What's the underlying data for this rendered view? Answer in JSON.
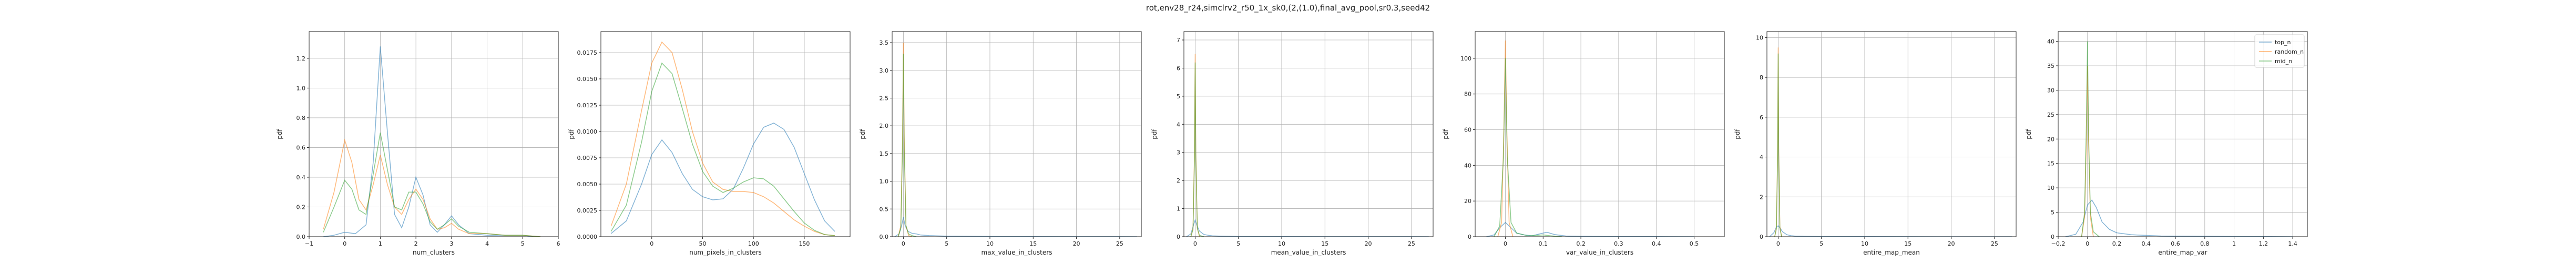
{
  "figure": {
    "title": "rot,env28_r24,simclrv2_r50_1x_sk0,(2,(1.0),final_avg_pool,sr0.3,seed42"
  },
  "colors": {
    "top_n": "#1f77b4",
    "random_n": "#ff7f0e",
    "mid_n": "#2ca02c"
  },
  "legend": {
    "entries": [
      "top_n",
      "random_n",
      "mid_n"
    ],
    "placement": "top-right"
  },
  "chart_data": [
    {
      "type": "line",
      "xlabel": "num_clusters",
      "ylabel": "pdf",
      "xlim": [
        -1,
        6
      ],
      "ylim": [
        0,
        1.38
      ],
      "xticks": [
        -1,
        0,
        1,
        2,
        3,
        4,
        5,
        6
      ],
      "yticks": [
        0.0,
        0.2,
        0.4,
        0.6,
        0.8,
        1.0,
        1.2
      ],
      "grid": true,
      "series": [
        {
          "name": "top_n",
          "x": [
            -0.6,
            -0.3,
            0,
            0.3,
            0.6,
            0.8,
            1.0,
            1.2,
            1.4,
            1.6,
            1.8,
            2.0,
            2.2,
            2.4,
            2.6,
            2.8,
            3.0,
            3.2,
            3.5,
            4.0,
            4.5,
            5.0,
            5.3
          ],
          "y": [
            0,
            0.01,
            0.03,
            0.02,
            0.08,
            0.5,
            1.28,
            0.7,
            0.15,
            0.06,
            0.2,
            0.4,
            0.28,
            0.08,
            0.03,
            0.08,
            0.14,
            0.08,
            0.02,
            0.01,
            0.01,
            0.01,
            0
          ]
        },
        {
          "name": "random_n",
          "x": [
            -0.6,
            -0.3,
            0,
            0.2,
            0.4,
            0.6,
            0.8,
            1.0,
            1.2,
            1.4,
            1.6,
            1.8,
            2.0,
            2.2,
            2.4,
            2.6,
            2.8,
            3.0,
            3.2,
            3.5,
            4.0,
            4.5,
            5.0,
            5.5
          ],
          "y": [
            0.05,
            0.3,
            0.65,
            0.5,
            0.25,
            0.18,
            0.35,
            0.55,
            0.35,
            0.2,
            0.15,
            0.25,
            0.32,
            0.25,
            0.12,
            0.05,
            0.06,
            0.09,
            0.05,
            0.02,
            0.02,
            0.01,
            0.01,
            0
          ]
        },
        {
          "name": "mid_n",
          "x": [
            -0.6,
            -0.3,
            0,
            0.2,
            0.4,
            0.6,
            0.8,
            1.0,
            1.2,
            1.4,
            1.6,
            1.8,
            2.0,
            2.2,
            2.4,
            2.6,
            2.8,
            3.0,
            3.2,
            3.5,
            4.0,
            4.5,
            5.0,
            5.5
          ],
          "y": [
            0.03,
            0.2,
            0.38,
            0.32,
            0.18,
            0.15,
            0.42,
            0.7,
            0.45,
            0.2,
            0.18,
            0.3,
            0.3,
            0.22,
            0.1,
            0.05,
            0.08,
            0.12,
            0.07,
            0.03,
            0.02,
            0.01,
            0.01,
            0
          ]
        }
      ]
    },
    {
      "type": "line",
      "xlabel": "num_pixels_in_clusters",
      "ylabel": "pdf",
      "xlim": [
        -50,
        195
      ],
      "ylim": [
        0,
        0.0195
      ],
      "xticks": [
        0,
        50,
        100,
        150
      ],
      "yticks": [
        0.0,
        0.0025,
        0.005,
        0.0075,
        0.01,
        0.0125,
        0.015,
        0.0175
      ],
      "ytick_labels": [
        "0.0000",
        "0.0025",
        "0.0050",
        "0.0075",
        "0.0100",
        "0.0125",
        "0.0150",
        "0.0175"
      ],
      "grid": true,
      "series": [
        {
          "name": "top_n",
          "x": [
            -40,
            -25,
            -10,
            0,
            10,
            20,
            30,
            40,
            50,
            60,
            70,
            80,
            90,
            100,
            110,
            120,
            130,
            140,
            150,
            160,
            170,
            180
          ],
          "y": [
            0.0003,
            0.0015,
            0.005,
            0.0078,
            0.0092,
            0.008,
            0.006,
            0.0045,
            0.0038,
            0.0035,
            0.0036,
            0.0045,
            0.0065,
            0.0088,
            0.0104,
            0.0108,
            0.0102,
            0.0085,
            0.006,
            0.0035,
            0.0015,
            0.0005
          ]
        },
        {
          "name": "random_n",
          "x": [
            -40,
            -25,
            -10,
            0,
            10,
            20,
            30,
            40,
            50,
            60,
            70,
            80,
            90,
            100,
            110,
            120,
            130,
            140,
            150,
            160,
            170,
            180
          ],
          "y": [
            0.001,
            0.005,
            0.012,
            0.0165,
            0.0185,
            0.0175,
            0.014,
            0.01,
            0.007,
            0.0052,
            0.0045,
            0.0043,
            0.0043,
            0.0042,
            0.0038,
            0.0032,
            0.0024,
            0.0016,
            0.001,
            0.0005,
            0.0002,
            0.0001
          ]
        },
        {
          "name": "mid_n",
          "x": [
            -40,
            -25,
            -10,
            0,
            10,
            20,
            30,
            40,
            50,
            60,
            70,
            80,
            90,
            100,
            110,
            120,
            130,
            140,
            150,
            160,
            170,
            180
          ],
          "y": [
            0.0005,
            0.003,
            0.009,
            0.0138,
            0.0165,
            0.0155,
            0.0122,
            0.0088,
            0.0062,
            0.0048,
            0.0042,
            0.0046,
            0.0052,
            0.0056,
            0.0055,
            0.0048,
            0.0036,
            0.0024,
            0.0013,
            0.0006,
            0.0002,
            0.0001
          ]
        }
      ]
    },
    {
      "type": "line",
      "xlabel": "max_value_in_clusters",
      "ylabel": "pdf",
      "xlim": [
        -1.3,
        27.5
      ],
      "ylim": [
        0,
        3.7
      ],
      "xticks": [
        0,
        5,
        10,
        15,
        20,
        25
      ],
      "yticks": [
        0.0,
        0.5,
        1.0,
        1.5,
        2.0,
        2.5,
        3.0,
        3.5
      ],
      "grid": true,
      "series": [
        {
          "name": "top_n",
          "x": [
            -1,
            -0.5,
            -0.2,
            0,
            0.2,
            0.5,
            1,
            1.5,
            2,
            3,
            5,
            10,
            15,
            20,
            25,
            27
          ],
          "y": [
            0,
            0.05,
            0.2,
            0.35,
            0.2,
            0.1,
            0.06,
            0.05,
            0.03,
            0.02,
            0.01,
            0.005,
            0.002,
            0.001,
            0.001,
            0
          ]
        },
        {
          "name": "random_n",
          "x": [
            -0.6,
            -0.3,
            -0.1,
            0,
            0.1,
            0.3,
            0.6,
            1
          ],
          "y": [
            0,
            0.2,
            1.8,
            3.5,
            1.8,
            0.2,
            0.02,
            0
          ]
        },
        {
          "name": "mid_n",
          "x": [
            -0.6,
            -0.3,
            -0.1,
            0,
            0.1,
            0.3,
            0.6,
            1,
            1.5
          ],
          "y": [
            0,
            0.15,
            1.6,
            3.3,
            1.6,
            0.2,
            0.05,
            0.02,
            0
          ]
        }
      ]
    },
    {
      "type": "line",
      "xlabel": "mean_value_in_clusters",
      "ylabel": "pdf",
      "xlim": [
        -1.3,
        27.5
      ],
      "ylim": [
        0,
        7.3
      ],
      "xticks": [
        0,
        5,
        10,
        15,
        20,
        25
      ],
      "yticks": [
        0,
        1,
        2,
        3,
        4,
        5,
        6,
        7
      ],
      "grid": true,
      "series": [
        {
          "name": "top_n",
          "x": [
            -1,
            -0.5,
            -0.2,
            0,
            0.2,
            0.5,
            1,
            1.5,
            2,
            3,
            5,
            10,
            15,
            20,
            25,
            27
          ],
          "y": [
            0,
            0.1,
            0.4,
            0.6,
            0.4,
            0.2,
            0.08,
            0.05,
            0.03,
            0.02,
            0.01,
            0.005,
            0.002,
            0.001,
            0.001,
            0
          ]
        },
        {
          "name": "random_n",
          "x": [
            -0.5,
            -0.25,
            -0.08,
            0,
            0.08,
            0.25,
            0.5
          ],
          "y": [
            0,
            0.3,
            3,
            6.5,
            3,
            0.3,
            0
          ]
        },
        {
          "name": "mid_n",
          "x": [
            -0.5,
            -0.25,
            -0.08,
            0,
            0.08,
            0.25,
            0.5,
            1
          ],
          "y": [
            0,
            0.25,
            2.8,
            6.2,
            2.8,
            0.3,
            0.05,
            0
          ]
        }
      ]
    },
    {
      "type": "line",
      "xlabel": "var_value_in_clusters",
      "ylabel": "pdf",
      "xlim": [
        -0.08,
        0.58
      ],
      "ylim": [
        0,
        115
      ],
      "xticks": [
        0.0,
        0.1,
        0.2,
        0.3,
        0.4,
        0.5
      ],
      "yticks": [
        0,
        20,
        40,
        60,
        80,
        100
      ],
      "grid": true,
      "series": [
        {
          "name": "top_n",
          "x": [
            -0.05,
            -0.03,
            -0.015,
            0,
            0.015,
            0.03,
            0.05,
            0.07,
            0.09,
            0.11,
            0.13,
            0.16,
            0.2,
            0.3,
            0.4,
            0.5
          ],
          "y": [
            0,
            1,
            5,
            8,
            5,
            2,
            1,
            0.5,
            1.5,
            2.5,
            1.2,
            0.4,
            0.2,
            0.1,
            0.05,
            0
          ]
        },
        {
          "name": "random_n",
          "x": [
            -0.02,
            -0.01,
            -0.004,
            0,
            0.004,
            0.01,
            0.02
          ],
          "y": [
            0,
            8,
            60,
            110,
            60,
            8,
            0
          ]
        },
        {
          "name": "mid_n",
          "x": [
            -0.03,
            -0.015,
            -0.005,
            0,
            0.005,
            0.015,
            0.03,
            0.06,
            0.1,
            0.12,
            0.15
          ],
          "y": [
            0,
            6,
            45,
            100,
            45,
            8,
            2,
            0.5,
            1,
            0.5,
            0
          ]
        }
      ]
    },
    {
      "type": "line",
      "xlabel": "entire_map_mean",
      "ylabel": "pdf",
      "xlim": [
        -1.3,
        27.5
      ],
      "ylim": [
        0,
        10.3
      ],
      "xticks": [
        0,
        5,
        10,
        15,
        20,
        25
      ],
      "yticks": [
        0,
        2,
        4,
        6,
        8,
        10
      ],
      "grid": true,
      "series": [
        {
          "name": "top_n",
          "x": [
            -1,
            -0.5,
            -0.2,
            0,
            0.2,
            0.5,
            1,
            1.5,
            2,
            3,
            5,
            10,
            15,
            20,
            25,
            27
          ],
          "y": [
            0,
            0.2,
            0.5,
            0.55,
            0.45,
            0.25,
            0.1,
            0.05,
            0.03,
            0.02,
            0.01,
            0.005,
            0.002,
            0.001,
            0.001,
            0
          ]
        },
        {
          "name": "random_n",
          "x": [
            -0.4,
            -0.2,
            -0.06,
            0,
            0.06,
            0.2,
            0.4
          ],
          "y": [
            0,
            0.5,
            4.5,
            9.5,
            4.5,
            0.5,
            0
          ]
        },
        {
          "name": "mid_n",
          "x": [
            -0.4,
            -0.2,
            -0.06,
            0,
            0.06,
            0.2,
            0.4
          ],
          "y": [
            0,
            0.4,
            4.2,
            9.2,
            4.2,
            0.4,
            0
          ]
        }
      ]
    },
    {
      "type": "line",
      "xlabel": "entire_map_var",
      "ylabel": "pdf",
      "xlim": [
        -0.2,
        1.5
      ],
      "ylim": [
        0,
        42
      ],
      "xticks": [
        -0.2,
        0.0,
        0.2,
        0.4,
        0.6,
        0.8,
        1.0,
        1.2,
        1.4
      ],
      "yticks": [
        0,
        5,
        10,
        15,
        20,
        25,
        30,
        35,
        40
      ],
      "grid": true,
      "series": [
        {
          "name": "top_n",
          "x": [
            -0.15,
            -0.08,
            -0.03,
            0,
            0.03,
            0.06,
            0.1,
            0.15,
            0.2,
            0.3,
            0.5,
            0.8,
            1.0,
            1.2,
            1.4
          ],
          "y": [
            0,
            0.5,
            3,
            6.5,
            7.5,
            6,
            3,
            1.5,
            0.8,
            0.4,
            0.15,
            0.1,
            0.05,
            0.03,
            0
          ]
        },
        {
          "name": "random_n",
          "x": [
            -0.04,
            -0.02,
            -0.007,
            0,
            0.007,
            0.02,
            0.04
          ],
          "y": [
            0,
            4,
            20,
            35,
            20,
            4,
            0
          ]
        },
        {
          "name": "mid_n",
          "x": [
            -0.04,
            -0.02,
            -0.007,
            0,
            0.007,
            0.02,
            0.04,
            0.08
          ],
          "y": [
            0,
            5,
            24,
            40,
            22,
            5,
            1,
            0
          ]
        }
      ]
    }
  ]
}
